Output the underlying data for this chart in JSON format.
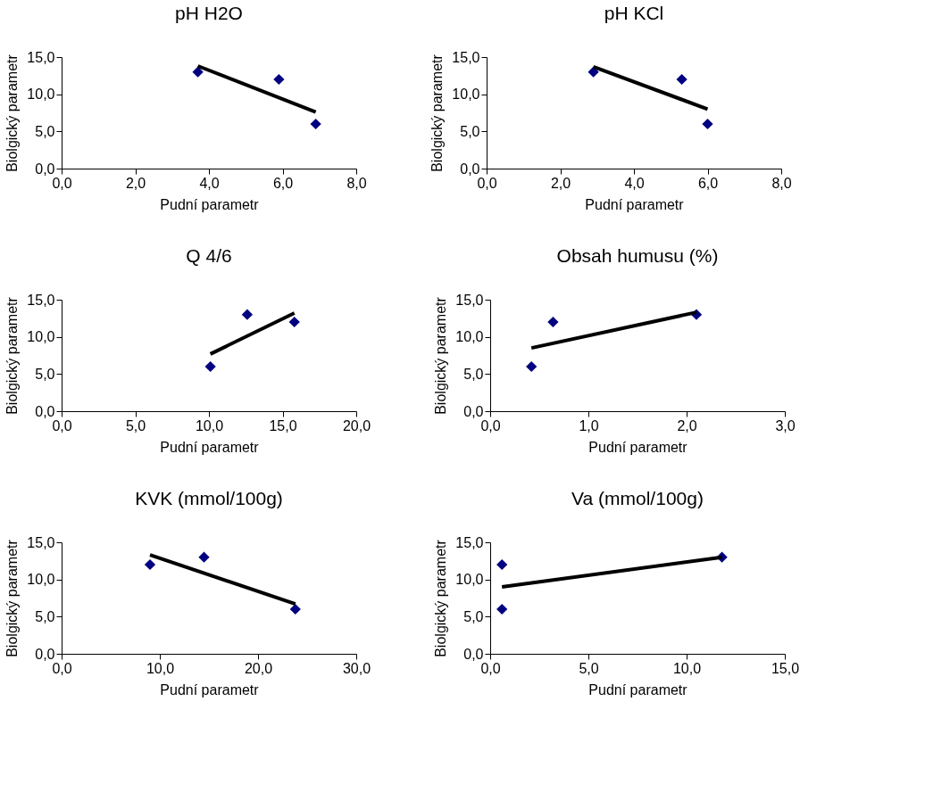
{
  "chart_data": [
    {
      "type": "scatter",
      "title": "pH H2O",
      "xlabel": "Pudní parametr",
      "ylabel": "Biolgický parametr",
      "xlim": [
        0,
        8
      ],
      "xticks": [
        {
          "value": 0,
          "label": "0,0"
        },
        {
          "value": 2,
          "label": "2,0"
        },
        {
          "value": 4,
          "label": "4,0"
        },
        {
          "value": 6,
          "label": "6,0"
        },
        {
          "value": 8,
          "label": "8,0"
        }
      ],
      "ylim": [
        0,
        15
      ],
      "yticks": [
        {
          "value": 0,
          "label": "0,0"
        },
        {
          "value": 5,
          "label": "5,0"
        },
        {
          "value": 10,
          "label": "10,0"
        },
        {
          "value": 15,
          "label": "15,0"
        }
      ],
      "grid": false,
      "marker": "diamond",
      "series": [
        {
          "type": "scatter",
          "color": "#000080",
          "x": [
            3.7,
            5.9,
            6.9
          ],
          "values": [
            13,
            12,
            6
          ]
        },
        {
          "type": "line",
          "marker": "none",
          "color": "#000000",
          "x": [
            3.7,
            6.9
          ],
          "values": [
            13.8,
            7.6
          ]
        }
      ]
    },
    {
      "type": "scatter",
      "title": "pH KCl",
      "xlabel": "Pudní parametr",
      "ylabel": "Biolgický parametr",
      "xlim": [
        0,
        8
      ],
      "xticks": [
        {
          "value": 0,
          "label": "0,0"
        },
        {
          "value": 2,
          "label": "2,0"
        },
        {
          "value": 4,
          "label": "4,0"
        },
        {
          "value": 6,
          "label": "6,0"
        },
        {
          "value": 8,
          "label": "8,0"
        }
      ],
      "ylim": [
        0,
        15
      ],
      "yticks": [
        {
          "value": 0,
          "label": "0,0"
        },
        {
          "value": 5,
          "label": "5,0"
        },
        {
          "value": 10,
          "label": "10,0"
        },
        {
          "value": 15,
          "label": "15,0"
        }
      ],
      "grid": false,
      "marker": "diamond",
      "series": [
        {
          "type": "scatter",
          "color": "#000080",
          "x": [
            2.9,
            5.3,
            6.0
          ],
          "values": [
            13,
            12,
            6
          ]
        },
        {
          "type": "line",
          "marker": "none",
          "color": "#000000",
          "x": [
            2.9,
            6.0
          ],
          "values": [
            13.7,
            8.0
          ]
        }
      ]
    },
    {
      "type": "scatter",
      "title": "Q 4/6",
      "xlabel": "Pudní parametr",
      "ylabel": "Biolgický parametr",
      "xlim": [
        0,
        20
      ],
      "xticks": [
        {
          "value": 0,
          "label": "0,0"
        },
        {
          "value": 5,
          "label": "5,0"
        },
        {
          "value": 10,
          "label": "10,0"
        },
        {
          "value": 15,
          "label": "15,0"
        },
        {
          "value": 20,
          "label": "20,0"
        }
      ],
      "ylim": [
        0,
        15
      ],
      "yticks": [
        {
          "value": 0,
          "label": "0,0"
        },
        {
          "value": 5,
          "label": "5,0"
        },
        {
          "value": 10,
          "label": "10,0"
        },
        {
          "value": 15,
          "label": "15,0"
        }
      ],
      "grid": false,
      "marker": "diamond",
      "series": [
        {
          "type": "scatter",
          "color": "#000080",
          "x": [
            10.1,
            12.6,
            15.8
          ],
          "values": [
            6,
            13,
            12
          ]
        },
        {
          "type": "line",
          "marker": "none",
          "color": "#000000",
          "x": [
            10.1,
            15.8
          ],
          "values": [
            7.7,
            13.2
          ]
        }
      ]
    },
    {
      "type": "scatter",
      "title": "Obsah humusu (%)",
      "xlabel": "Pudní parametr",
      "ylabel": "Biolgický parametr",
      "xlim": [
        0,
        3
      ],
      "xticks": [
        {
          "value": 0,
          "label": "0,0"
        },
        {
          "value": 1,
          "label": "1,0"
        },
        {
          "value": 2,
          "label": "2,0"
        },
        {
          "value": 3,
          "label": "3,0"
        }
      ],
      "ylim": [
        0,
        15
      ],
      "yticks": [
        {
          "value": 0,
          "label": "0,0"
        },
        {
          "value": 5,
          "label": "5,0"
        },
        {
          "value": 10,
          "label": "10,0"
        },
        {
          "value": 15,
          "label": "15,0"
        }
      ],
      "grid": false,
      "marker": "diamond",
      "series": [
        {
          "type": "scatter",
          "color": "#000080",
          "x": [
            0.42,
            0.64,
            2.1
          ],
          "values": [
            6,
            12,
            13
          ]
        },
        {
          "type": "line",
          "marker": "none",
          "color": "#000000",
          "x": [
            0.42,
            2.1
          ],
          "values": [
            8.5,
            13.3
          ]
        }
      ]
    },
    {
      "type": "scatter",
      "title": "KVK (mmol/100g)",
      "xlabel": "Pudní parametr",
      "ylabel": "Biolgický parametr",
      "xlim": [
        0,
        30
      ],
      "xticks": [
        {
          "value": 0,
          "label": "0,0"
        },
        {
          "value": 10,
          "label": "10,0"
        },
        {
          "value": 20,
          "label": "20,0"
        },
        {
          "value": 30,
          "label": "30,0"
        }
      ],
      "ylim": [
        0,
        15
      ],
      "yticks": [
        {
          "value": 0,
          "label": "0,0"
        },
        {
          "value": 5,
          "label": "5,0"
        },
        {
          "value": 10,
          "label": "10,0"
        },
        {
          "value": 15,
          "label": "15,0"
        }
      ],
      "grid": false,
      "marker": "diamond",
      "series": [
        {
          "type": "scatter",
          "color": "#000080",
          "x": [
            9.0,
            14.5,
            23.8
          ],
          "values": [
            12,
            13,
            6
          ]
        },
        {
          "type": "line",
          "marker": "none",
          "color": "#000000",
          "x": [
            9.0,
            23.8
          ],
          "values": [
            13.3,
            6.7
          ]
        }
      ]
    },
    {
      "type": "scatter",
      "title": "Va (mmol/100g)",
      "xlabel": "Pudní parametr",
      "ylabel": "Biolgický parametr",
      "xlim": [
        0,
        15
      ],
      "xticks": [
        {
          "value": 0,
          "label": "0,0"
        },
        {
          "value": 5,
          "label": "5,0"
        },
        {
          "value": 10,
          "label": "10,0"
        },
        {
          "value": 15,
          "label": "15,0"
        }
      ],
      "ylim": [
        0,
        15
      ],
      "yticks": [
        {
          "value": 0,
          "label": "0,0"
        },
        {
          "value": 5,
          "label": "5,0"
        },
        {
          "value": 10,
          "label": "10,0"
        },
        {
          "value": 15,
          "label": "15,0"
        }
      ],
      "grid": false,
      "marker": "diamond",
      "series": [
        {
          "type": "scatter",
          "color": "#000080",
          "x": [
            0.6,
            0.6,
            11.8
          ],
          "values": [
            12,
            6,
            13
          ]
        },
        {
          "type": "line",
          "marker": "none",
          "color": "#000000",
          "x": [
            0.6,
            11.8
          ],
          "values": [
            9.0,
            13.0
          ]
        }
      ]
    }
  ]
}
